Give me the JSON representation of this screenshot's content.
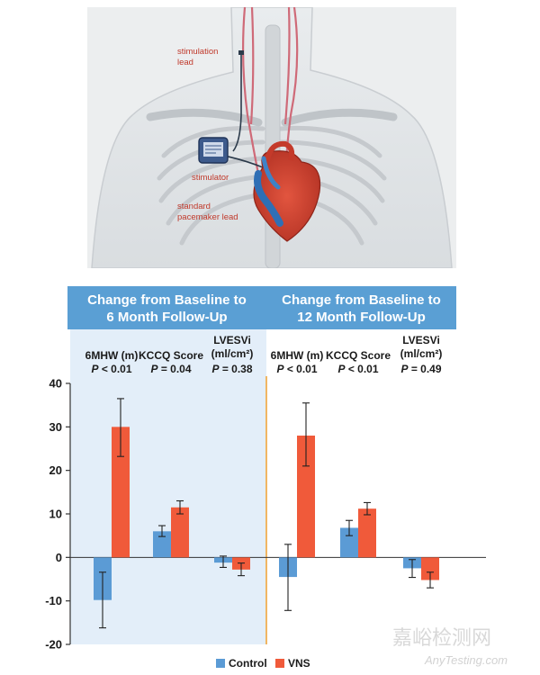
{
  "illustration": {
    "labels": {
      "stimulation_lead_1": "stimulation",
      "stimulation_lead_2": "lead",
      "stimulator": "stimulator",
      "pacemaker_lead_1": "standard",
      "pacemaker_lead_2": "pacemaker lead"
    }
  },
  "watermark": {
    "cn": "嘉峪检测网",
    "en": "AnyTesting.com"
  },
  "colors": {
    "control": "#5b9bd5",
    "vns": "#f05a3a",
    "banner": "#5a9fd4",
    "divider": "#f0a030",
    "left_panel_bg": "#e3eef9",
    "callout": "#c0392b"
  },
  "chart_data": {
    "type": "bar",
    "panels": [
      {
        "banner": [
          "Change from Baseline to",
          "6 Month Follow-Up"
        ],
        "categories": [
          {
            "name": [
              "6MHW (m)"
            ],
            "p_label": "P",
            "p_value": "< 0.01"
          },
          {
            "name": [
              "KCCQ Score"
            ],
            "p_label": "P",
            "p_value": "= 0.04"
          },
          {
            "name": [
              "LVESVi",
              "(ml/cm²)"
            ],
            "p_label": "P",
            "p_value": "= 0.38"
          }
        ],
        "series": [
          {
            "name": "Control",
            "values": [
              -9.8,
              6.0,
              -1.2
            ],
            "err_low": [
              -16.2,
              4.8,
              -2.3
            ],
            "err_high": [
              -3.4,
              7.3,
              0.3
            ]
          },
          {
            "name": "VNS",
            "values": [
              30.0,
              11.5,
              -2.8
            ],
            "err_low": [
              23.2,
              10.0,
              -4.2
            ],
            "err_high": [
              36.5,
              13.0,
              -1.3
            ]
          }
        ]
      },
      {
        "banner": [
          "Change from Baseline to",
          "12 Month Follow-Up"
        ],
        "categories": [
          {
            "name": [
              "6MHW (m)"
            ],
            "p_label": "P",
            "p_value": "< 0.01"
          },
          {
            "name": [
              "KCCQ Score"
            ],
            "p_label": "P",
            "p_value": "< 0.01"
          },
          {
            "name": [
              "LVESVi",
              "(ml/cm²)"
            ],
            "p_label": "P",
            "p_value": "= 0.49"
          }
        ],
        "series": [
          {
            "name": "Control",
            "values": [
              -4.5,
              6.8,
              -2.5
            ],
            "err_low": [
              -12.2,
              5.0,
              -4.6
            ],
            "err_high": [
              3.0,
              8.5,
              -0.5
            ]
          },
          {
            "name": "VNS",
            "values": [
              28.0,
              11.2,
              -5.2
            ],
            "err_low": [
              21.0,
              9.8,
              -7.0
            ],
            "err_high": [
              35.5,
              12.6,
              -3.4
            ]
          }
        ]
      }
    ],
    "ylim": [
      -20,
      40
    ],
    "yticks": [
      -20,
      -10,
      0,
      10,
      20,
      30,
      40
    ],
    "legend": [
      "Control",
      "VNS"
    ],
    "legend_position": "bottom-center",
    "grid": false
  }
}
